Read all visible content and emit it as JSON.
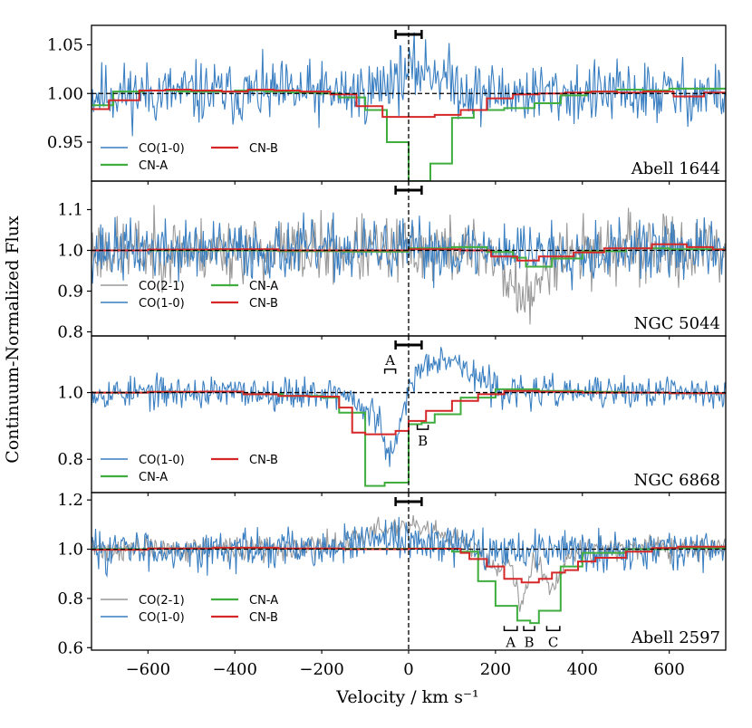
{
  "figure": {
    "xlabel": "Velocity / km s⁻¹",
    "ylabel": "Continuum-Normalized Flux",
    "x_ticks": [
      -600,
      -400,
      -200,
      0,
      200,
      400,
      600
    ],
    "x_tick_labels": [
      "−600",
      "−400",
      "−200",
      "0",
      "200",
      "400",
      "600"
    ]
  },
  "colors": {
    "co10": "#3a7fc1",
    "co21": "#999999",
    "cn_a": "#3fae3f",
    "cn_b": "#d62728"
  },
  "chart_data": [
    {
      "type": "line",
      "name": "Abell 1644",
      "xlim": [
        -730,
        730
      ],
      "ylim": [
        0.91,
        1.07
      ],
      "y_ticks": [
        0.95,
        1.0,
        1.05
      ],
      "y_tick_labels": [
        "0.95",
        "1.00",
        "1.05"
      ],
      "reference_line": 1.0,
      "velocity_bar": [
        -30,
        30
      ],
      "legend": [
        {
          "label": "CO(1-0)",
          "key": "co10"
        },
        {
          "label": "CN-A",
          "key": "cn_a"
        },
        {
          "label": "CN-B",
          "key": "cn_b"
        }
      ],
      "series": [
        {
          "name": "CO(1-0)",
          "key": "co10",
          "noise": 0.02,
          "seed": 11,
          "features": [
            [
              -60,
              30,
              0.02
            ],
            [
              40,
              50,
              0.025
            ],
            [
              -70,
              25,
              -0.015
            ]
          ]
        },
        {
          "name": "CN-A",
          "key": "cn_a",
          "edges": [
            -730,
            -680,
            -610,
            -530,
            -470,
            -400,
            -330,
            -270,
            -210,
            -160,
            -100,
            -50,
            0,
            50,
            100,
            150,
            220,
            290,
            350,
            410,
            480,
            540,
            600,
            660,
            730
          ],
          "levels": [
            0.988,
            1.002,
            1.003,
            1.002,
            1.002,
            1.003,
            1.002,
            1.001,
            1.0,
            0.996,
            0.983,
            0.95,
            0.91,
            0.928,
            0.975,
            0.983,
            0.985,
            0.99,
            0.998,
            1.002,
            1.004,
            1.003,
            1.005,
            1.005
          ]
        },
        {
          "name": "CN-B",
          "key": "cn_b",
          "edges": [
            -730,
            -690,
            -620,
            -560,
            -500,
            -430,
            -370,
            -310,
            -250,
            -180,
            -120,
            -60,
            0,
            60,
            120,
            180,
            240,
            300,
            360,
            420,
            480,
            540,
            610,
            680,
            730
          ],
          "levels": [
            0.984,
            0.993,
            1.003,
            1.004,
            1.003,
            1.002,
            1.004,
            1.003,
            1.002,
            0.999,
            0.987,
            0.976,
            0.976,
            0.978,
            0.983,
            0.995,
            0.999,
            1.0,
            1.001,
            1.002,
            1.001,
            1.002,
            0.997,
            1.001
          ]
        }
      ]
    },
    {
      "type": "line",
      "name": "NGC 5044",
      "xlim": [
        -730,
        730
      ],
      "ylim": [
        0.79,
        1.17
      ],
      "y_ticks": [
        0.8,
        0.9,
        1.0,
        1.1
      ],
      "y_tick_labels": [
        "0.8",
        "0.9",
        "1.0",
        "1.1"
      ],
      "reference_line": 1.0,
      "velocity_bar": [
        -30,
        30
      ],
      "legend": [
        {
          "label": "CO(2-1)",
          "key": "co21"
        },
        {
          "label": "CO(1-0)",
          "key": "co10"
        },
        {
          "label": "CN-A",
          "key": "cn_a"
        },
        {
          "label": "CN-B",
          "key": "cn_b"
        }
      ],
      "series": [
        {
          "name": "CO(2-1)",
          "key": "co21",
          "noise": 0.05,
          "seed": 23,
          "features": [
            [
              280,
              25,
              -0.12
            ],
            [
              230,
              20,
              -0.06
            ]
          ]
        },
        {
          "name": "CO(1-0)",
          "key": "co10",
          "noise": 0.045,
          "seed": 37,
          "features": []
        },
        {
          "name": "CN-A",
          "key": "cn_a",
          "edges": [
            -730,
            -600,
            -450,
            -300,
            -150,
            0,
            100,
            180,
            240,
            270,
            330,
            400,
            500,
            600,
            730
          ],
          "levels": [
            1.0,
            1.0,
            1.0,
            0.998,
            0.997,
            1.005,
            1.008,
            0.996,
            0.982,
            0.96,
            0.98,
            0.998,
            1.005,
            1.003
          ]
        },
        {
          "name": "CN-B",
          "key": "cn_b",
          "edges": [
            -730,
            -600,
            -450,
            -300,
            -150,
            0,
            120,
            190,
            250,
            300,
            380,
            450,
            560,
            640,
            700,
            730
          ],
          "levels": [
            1.0,
            1.002,
            1.003,
            1.0,
            1.0,
            1.003,
            1.0,
            0.985,
            0.975,
            0.985,
            0.995,
            1.005,
            1.015,
            1.008,
            1.002
          ]
        }
      ]
    },
    {
      "type": "line",
      "name": "NGC 6868",
      "xlim": [
        -730,
        730
      ],
      "ylim": [
        0.7,
        1.17
      ],
      "y_ticks": [
        0.8,
        1.0
      ],
      "y_tick_labels": [
        "0.8",
        "1.0"
      ],
      "reference_line": 1.0,
      "velocity_bar": [
        -30,
        30
      ],
      "legend": [
        {
          "label": "CO(1-0)",
          "key": "co10"
        },
        {
          "label": "CN-A",
          "key": "cn_a"
        },
        {
          "label": "CN-B",
          "key": "cn_b"
        }
      ],
      "series": [
        {
          "name": "CO(1-0)",
          "key": "co10",
          "noise": 0.03,
          "seed": 53,
          "features": [
            [
              -40,
              20,
              -0.2
            ],
            [
              60,
              45,
              0.08
            ],
            [
              120,
              50,
              0.05
            ],
            [
              -100,
              20,
              -0.06
            ]
          ]
        },
        {
          "name": "CN-A",
          "key": "cn_a",
          "edges": [
            -730,
            -600,
            -480,
            -380,
            -290,
            -200,
            -160,
            -100,
            -55,
            0,
            30,
            60,
            120,
            200,
            300,
            400,
            500,
            600,
            730
          ],
          "levels": [
            1.0,
            1.002,
            1.003,
            0.995,
            0.99,
            0.985,
            0.94,
            0.72,
            0.73,
            0.905,
            0.91,
            0.935,
            0.985,
            1.01,
            1.005,
            1.002,
            1.0,
            0.998
          ]
        },
        {
          "name": "CN-B",
          "key": "cn_b",
          "edges": [
            -730,
            -600,
            -480,
            -380,
            -300,
            -230,
            -160,
            -130,
            -100,
            -70,
            -30,
            0,
            40,
            100,
            160,
            220,
            300,
            400,
            500,
            600,
            730
          ],
          "levels": [
            1.0,
            1.002,
            1.003,
            0.995,
            0.99,
            0.988,
            0.955,
            0.88,
            0.875,
            0.875,
            0.885,
            0.915,
            0.945,
            0.975,
            0.995,
            1.005,
            1.002,
            1.0,
            1.0,
            0.998
          ]
        }
      ],
      "annotations": [
        {
          "label": "A",
          "x0": -55,
          "x1": -30,
          "y": 1.07,
          "side": "above"
        },
        {
          "label": "B",
          "x0": 20,
          "x1": 45,
          "y": 0.89,
          "side": "below"
        }
      ]
    },
    {
      "type": "line",
      "name": "Abell 2597",
      "xlim": [
        -730,
        730
      ],
      "ylim": [
        0.59,
        1.23
      ],
      "y_ticks": [
        0.6,
        0.8,
        1.0,
        1.2
      ],
      "y_tick_labels": [
        "0.6",
        "0.8",
        "1.0",
        "1.2"
      ],
      "reference_line": 1.0,
      "velocity_bar": [
        -30,
        30
      ],
      "legend": [
        {
          "label": "CO(2-1)",
          "key": "co21"
        },
        {
          "label": "CO(1-0)",
          "key": "co10"
        },
        {
          "label": "CN-A",
          "key": "cn_a"
        },
        {
          "label": "CN-B",
          "key": "cn_b"
        }
      ],
      "series": [
        {
          "name": "CO(2-1)",
          "key": "co21",
          "noise": 0.03,
          "seed": 71,
          "features": [
            [
              -20,
              90,
              0.09
            ],
            [
              260,
              15,
              -0.2
            ],
            [
              330,
              20,
              -0.15
            ],
            [
              200,
              20,
              -0.08
            ]
          ]
        },
        {
          "name": "CO(1-0)",
          "key": "co10",
          "noise": 0.05,
          "seed": 83,
          "features": [
            [
              -20,
              80,
              0.04
            ]
          ]
        },
        {
          "name": "CN-A",
          "key": "cn_a",
          "edges": [
            -730,
            -600,
            -450,
            -300,
            -150,
            0,
            100,
            160,
            200,
            250,
            280,
            300,
            350,
            400,
            500,
            600,
            730
          ],
          "levels": [
            1.0,
            1.003,
            1.005,
            1.002,
            1.002,
            1.003,
            0.99,
            0.87,
            0.77,
            0.71,
            0.7,
            0.75,
            0.93,
            0.985,
            1.0,
            1.005
          ]
        },
        {
          "name": "CN-B",
          "key": "cn_b",
          "edges": [
            -730,
            -600,
            -450,
            -300,
            -150,
            0,
            120,
            140,
            180,
            220,
            260,
            300,
            330,
            360,
            390,
            430,
            500,
            560,
            620,
            730
          ],
          "levels": [
            0.998,
            1.003,
            1.006,
            1.003,
            1.0,
            1.002,
            0.985,
            0.96,
            0.93,
            0.88,
            0.865,
            0.88,
            0.905,
            0.915,
            0.95,
            0.965,
            0.99,
            1.005,
            1.01
          ]
        }
      ],
      "annotations": [
        {
          "label": "A",
          "x0": 220,
          "x1": 250,
          "y": 0.67,
          "side": "below"
        },
        {
          "label": "B",
          "x0": 265,
          "x1": 290,
          "y": 0.67,
          "side": "below"
        },
        {
          "label": "C",
          "x0": 318,
          "x1": 348,
          "y": 0.67,
          "side": "below"
        }
      ]
    }
  ]
}
